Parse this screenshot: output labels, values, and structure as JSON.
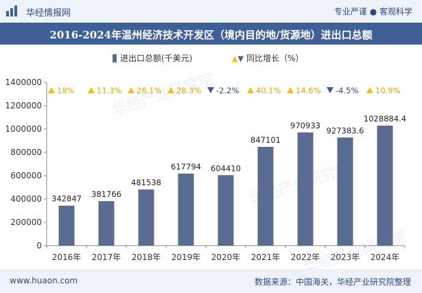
{
  "header": {
    "brand": "华经情报网",
    "tagline": "专业严谨 ● 客观科学"
  },
  "footer": {
    "website": "www.huaon.com",
    "source": "数据来源：中国海关，华经产业研究院整理"
  },
  "watermark": "华经产业研究院",
  "colors": {
    "bar": "#5a6b91",
    "up": "#f2c400",
    "down": "#3f5f97",
    "title_bg": "#3f5f97"
  },
  "chart_data": {
    "type": "bar",
    "title": "2016-2024年温州经济技术开发区（境内目的地/货源地）进出口总额",
    "legend": {
      "bar_label": "进出口总额(千美元)",
      "growth_label": "同比增长（%）"
    },
    "categories": [
      "2016年",
      "2017年",
      "2018年",
      "2019年",
      "2020年",
      "2021年",
      "2022年",
      "2023年",
      "2024年"
    ],
    "values": [
      342847,
      381766,
      481538,
      617794,
      604410,
      847101,
      970933,
      927383.6,
      1028884.4
    ],
    "value_labels": [
      "342847",
      "381766",
      "481538",
      "617794",
      "604410",
      "847101",
      "970933",
      "927383.6",
      "1028884.4"
    ],
    "growth": [
      18,
      11.3,
      26.1,
      28.3,
      -2.2,
      40.1,
      14.6,
      -4.5,
      10.9
    ],
    "growth_labels": [
      "18%",
      "11.3%",
      "26.1%",
      "28.3%",
      "-2.2%",
      "40.1%",
      "14.6%",
      "-4.5%",
      "10.9%"
    ],
    "ylim": [
      0,
      1400000
    ],
    "yticks": [
      0,
      200000,
      400000,
      600000,
      800000,
      1000000,
      1200000,
      1400000
    ],
    "grid": false
  }
}
